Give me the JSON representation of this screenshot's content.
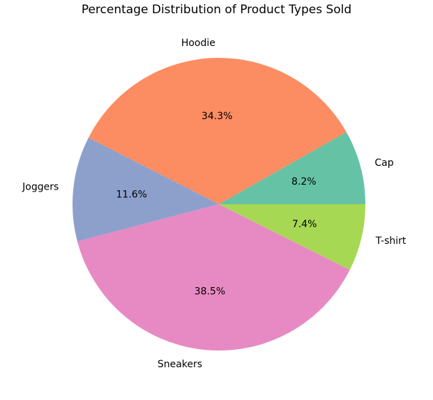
{
  "chart_data": {
    "type": "pie",
    "title": "Percentage Distribution of Product Types Sold",
    "start_angle": 0,
    "direction": "counterclockwise",
    "slices": [
      {
        "label": "Cap",
        "value": 8.2,
        "pct_label": "8.2%",
        "color": "#66c2a5"
      },
      {
        "label": "Hoodie",
        "value": 34.3,
        "pct_label": "34.3%",
        "color": "#fc8d62"
      },
      {
        "label": "Joggers",
        "value": 11.6,
        "pct_label": "11.6%",
        "color": "#8da0cb"
      },
      {
        "label": "Sneakers",
        "value": 38.5,
        "pct_label": "38.5%",
        "color": "#e78ac3"
      },
      {
        "label": "T-shirt",
        "value": 7.4,
        "pct_label": "7.4%",
        "color": "#a6d854"
      }
    ]
  }
}
